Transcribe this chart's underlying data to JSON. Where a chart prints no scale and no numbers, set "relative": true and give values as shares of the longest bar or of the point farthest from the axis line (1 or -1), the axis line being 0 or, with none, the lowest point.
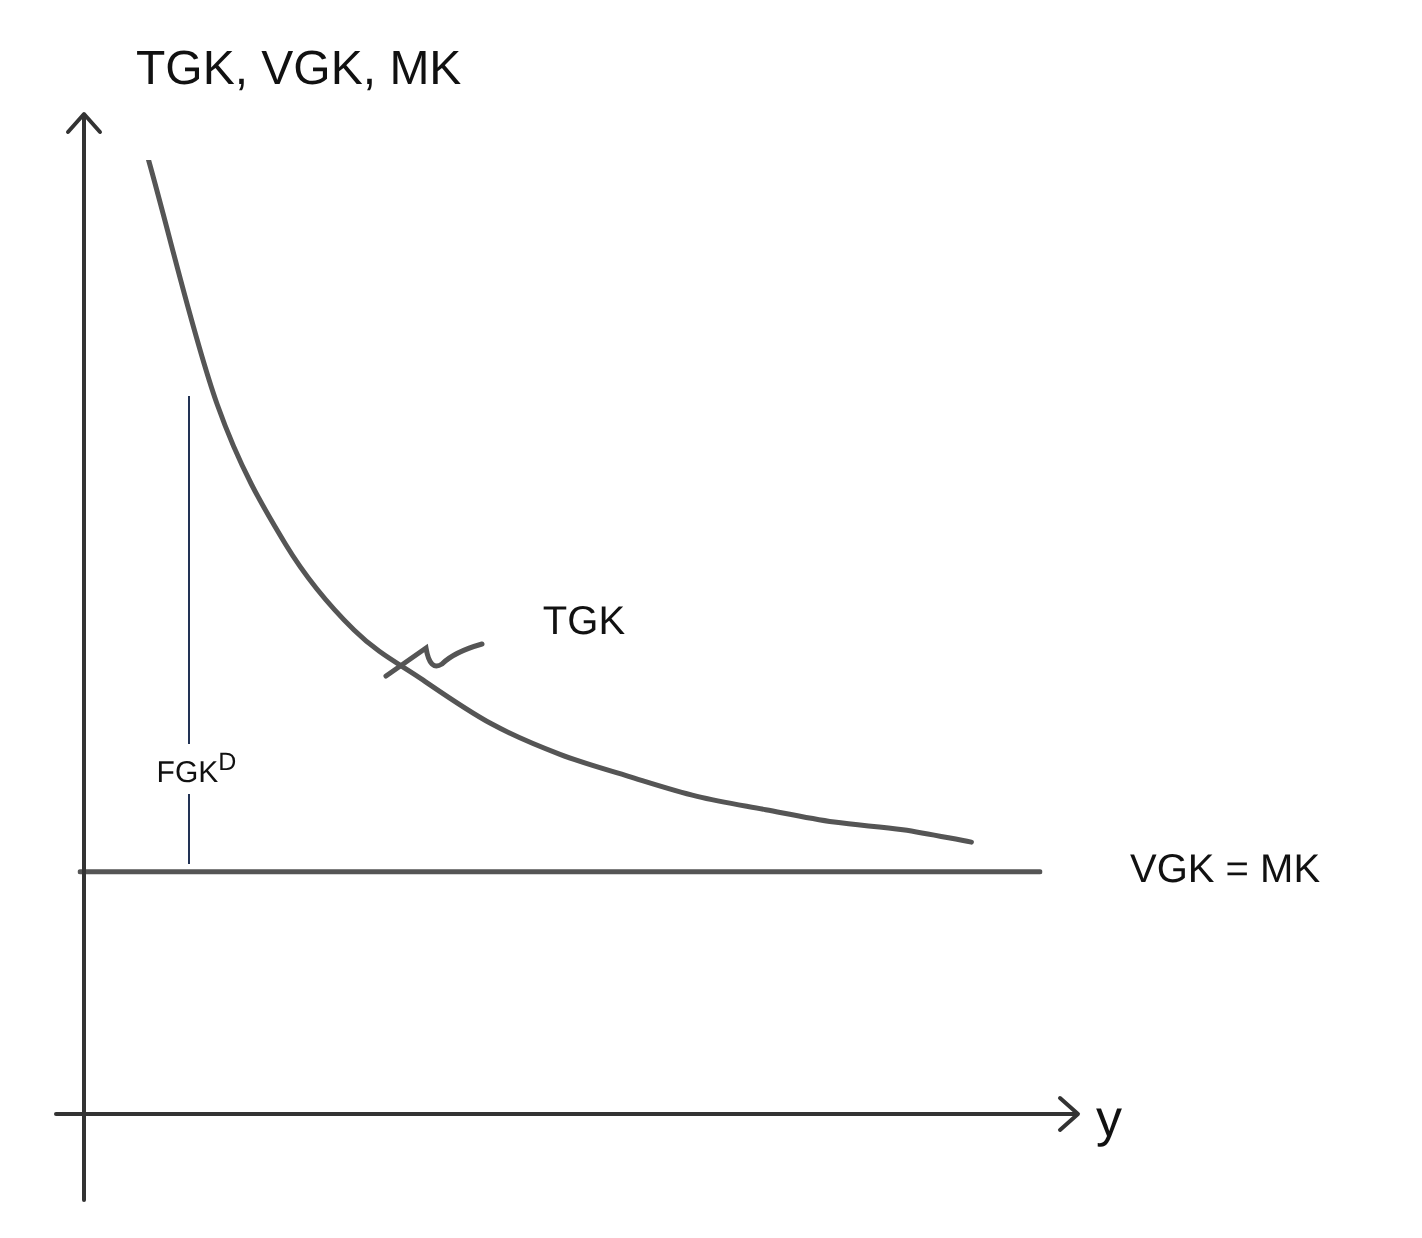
{
  "chart_data": {
    "type": "line",
    "relative": true,
    "ylabel": "TGK, VGK, MK",
    "xlabel": "y",
    "categories": [
      null,
      null,
      null,
      null,
      null,
      null,
      null,
      null,
      null,
      null,
      null,
      null,
      null,
      null,
      null
    ],
    "series": [
      {
        "name": "TGK",
        "color": "#555555",
        "values": [
          null,
          1,
          0.744,
          0.597,
          0.507,
          0.455,
          0.409,
          0.377,
          0.354,
          0.333,
          0.319,
          0.306,
          0.298,
          0.285,
          null
        ]
      },
      {
        "name": "VGK = MK",
        "color": "#555555",
        "values": [
          0.254,
          0.254,
          0.254,
          0.254,
          0.254,
          0.254,
          0.254,
          0.254,
          0.254,
          0.254,
          0.254,
          0.254,
          0.254,
          0.254,
          0.254
        ]
      }
    ],
    "annotations": [
      "FGK$^{D}$"
    ],
    "marker": "none",
    "line_style": "solid",
    "legend": false
  }
}
